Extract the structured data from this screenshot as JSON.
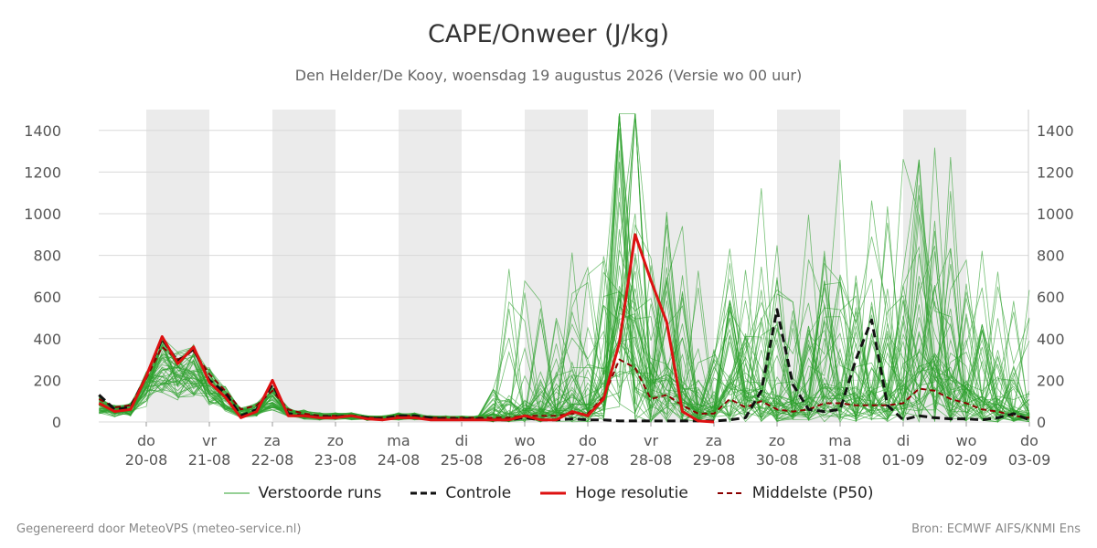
{
  "header": {
    "title": "CAPE/Onweer (J/kg)",
    "subtitle": "Den Helder/De Kooy, woensdag 19 augustus 2026 (Versie wo 00 uur)"
  },
  "footer": {
    "left": "Gegenereerd door MeteoVPS (meteo-service.nl)",
    "right": "Bron: ECMWF AIFS/KNMI Ens"
  },
  "legend": {
    "items": [
      {
        "label": "Verstoorde runs",
        "color": "#2ca02c",
        "style": "thin-solid"
      },
      {
        "label": "Controle",
        "color": "#111111",
        "style": "dashed"
      },
      {
        "label": "Hoge resolutie",
        "color": "#dd1111",
        "style": "thick-solid"
      },
      {
        "label": "Middelste (P50)",
        "color": "#8b0000",
        "style": "dashed"
      }
    ]
  },
  "chart_data": {
    "type": "line",
    "title": "CAPE/Onweer (J/kg)",
    "ylim": [
      0,
      1500
    ],
    "yticks": [
      0,
      200,
      400,
      600,
      800,
      1000,
      1200,
      1400
    ],
    "xlim": [
      -0.75,
      14
    ],
    "x_ticks": [
      {
        "day": "do",
        "date": "20-08"
      },
      {
        "day": "vr",
        "date": "21-08"
      },
      {
        "day": "za",
        "date": "22-08"
      },
      {
        "day": "zo",
        "date": "23-08"
      },
      {
        "day": "ma",
        "date": "24-08"
      },
      {
        "day": "di",
        "date": "25-08"
      },
      {
        "day": "wo",
        "date": "26-08"
      },
      {
        "day": "do",
        "date": "27-08"
      },
      {
        "day": "vr",
        "date": "28-08"
      },
      {
        "day": "za",
        "date": "29-08"
      },
      {
        "day": "zo",
        "date": "30-08"
      },
      {
        "day": "ma",
        "date": "31-08"
      },
      {
        "day": "di",
        "date": "01-09"
      },
      {
        "day": "wo",
        "date": "02-09"
      },
      {
        "day": "do",
        "date": "03-09"
      }
    ],
    "shaded_days": [
      [
        0,
        1
      ],
      [
        2,
        3
      ],
      [
        4,
        5
      ],
      [
        6,
        7
      ],
      [
        8,
        9
      ],
      [
        10,
        11
      ],
      [
        12,
        13
      ]
    ],
    "grid": true,
    "legend_position": "bottom",
    "colors": {
      "ensemble": "#2ca02c",
      "control": "#111111",
      "hires": "#dd1111",
      "median": "#8b0000",
      "shade": "#ebebeb",
      "grid": "#d9d9d9"
    },
    "series": [
      {
        "name": "Controle",
        "x": [
          -0.75,
          -0.5,
          -0.25,
          0,
          0.25,
          0.5,
          0.75,
          1,
          1.25,
          1.5,
          1.75,
          2,
          2.25,
          2.5,
          2.75,
          3,
          3.25,
          3.5,
          3.75,
          4,
          4.25,
          4.5,
          4.75,
          5,
          5.25,
          5.5,
          5.75,
          6,
          6.25,
          6.5,
          6.75,
          7,
          7.25,
          7.5,
          7.75,
          8,
          8.25,
          8.5,
          8.75,
          9,
          9.25,
          9.5,
          9.75,
          10,
          10.25,
          10.5,
          10.75,
          11,
          11.25,
          11.5,
          11.75,
          12,
          12.25,
          12.5,
          12.75,
          13,
          13.25,
          13.5,
          13.75,
          14
        ],
        "values": [
          130,
          60,
          70,
          220,
          400,
          290,
          350,
          200,
          140,
          30,
          60,
          180,
          40,
          30,
          25,
          25,
          30,
          20,
          15,
          30,
          30,
          20,
          15,
          15,
          15,
          10,
          10,
          20,
          10,
          10,
          15,
          10,
          10,
          5,
          5,
          5,
          5,
          5,
          5,
          5,
          10,
          20,
          150,
          540,
          180,
          60,
          50,
          60,
          300,
          490,
          80,
          10,
          30,
          20,
          15,
          15,
          10,
          20,
          40,
          10
        ]
      },
      {
        "name": "Hoge resolutie",
        "x": [
          -0.75,
          -0.5,
          -0.25,
          0,
          0.25,
          0.5,
          0.75,
          1,
          1.25,
          1.5,
          1.75,
          2,
          2.25,
          2.5,
          2.75,
          3,
          3.25,
          3.5,
          3.75,
          4,
          4.25,
          4.5,
          4.75,
          5,
          5.25,
          5.5,
          5.75,
          6,
          6.25,
          6.5,
          6.75,
          7,
          7.25,
          7.5,
          7.75,
          8,
          8.25,
          8.5,
          8.75,
          9
        ],
        "values": [
          90,
          50,
          60,
          220,
          410,
          280,
          360,
          190,
          120,
          20,
          50,
          200,
          30,
          30,
          20,
          20,
          30,
          15,
          10,
          20,
          20,
          10,
          10,
          10,
          10,
          10,
          10,
          30,
          10,
          10,
          50,
          30,
          110,
          380,
          900,
          680,
          480,
          50,
          5,
          0
        ]
      },
      {
        "name": "Middelste (P50)",
        "x": [
          -0.75,
          -0.5,
          -0.25,
          0,
          0.25,
          0.5,
          0.75,
          1,
          1.25,
          1.5,
          1.75,
          2,
          2.25,
          2.5,
          2.75,
          3,
          3.25,
          3.5,
          3.75,
          4,
          4.25,
          4.5,
          4.75,
          5,
          5.25,
          5.5,
          5.75,
          6,
          6.25,
          6.5,
          6.75,
          7,
          7.25,
          7.5,
          7.75,
          8,
          8.25,
          8.5,
          8.75,
          9,
          9.25,
          9.5,
          9.75,
          10,
          10.25,
          10.5,
          10.75,
          11,
          11.25,
          11.5,
          11.75,
          12,
          12.25,
          12.5,
          12.75,
          13,
          13.25,
          13.5,
          13.75,
          14
        ],
        "values": [
          110,
          70,
          80,
          210,
          360,
          300,
          340,
          230,
          150,
          60,
          80,
          150,
          60,
          40,
          30,
          30,
          30,
          20,
          20,
          30,
          30,
          20,
          20,
          20,
          20,
          20,
          20,
          30,
          30,
          30,
          40,
          40,
          120,
          300,
          260,
          110,
          130,
          80,
          40,
          40,
          110,
          70,
          100,
          60,
          50,
          60,
          90,
          90,
          80,
          80,
          80,
          90,
          160,
          150,
          110,
          90,
          60,
          50,
          30,
          20
        ]
      }
    ]
  }
}
